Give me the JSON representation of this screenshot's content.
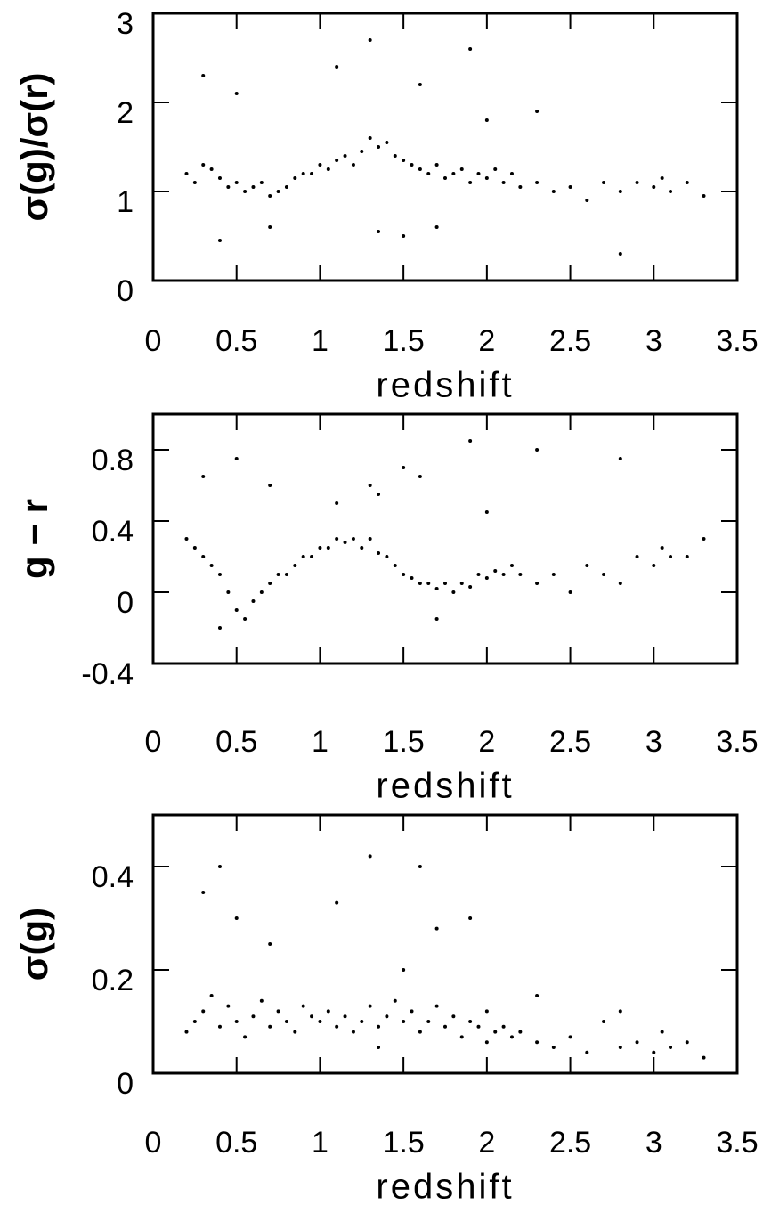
{
  "chart_data": [
    {
      "type": "scatter",
      "xlabel": "redshift",
      "ylabel": "σ(g)/σ(r)",
      "color": "#000000",
      "xlim": [
        0,
        3.5
      ],
      "xticks": [
        0,
        0.5,
        1,
        1.5,
        2,
        2.5,
        3,
        3.5
      ],
      "ylim": [
        0,
        3
      ],
      "yticks": [
        0,
        1,
        2,
        3
      ],
      "x": [
        0.2,
        0.25,
        0.3,
        0.35,
        0.4,
        0.45,
        0.5,
        0.55,
        0.6,
        0.65,
        0.7,
        0.75,
        0.8,
        0.85,
        0.9,
        0.95,
        1.0,
        1.05,
        1.1,
        1.15,
        1.2,
        1.25,
        1.3,
        1.35,
        1.4,
        1.45,
        1.5,
        1.55,
        1.6,
        1.65,
        1.7,
        1.75,
        1.8,
        1.85,
        1.9,
        1.95,
        2.0,
        2.05,
        2.1,
        2.15,
        2.2,
        2.3,
        2.4,
        2.5,
        2.6,
        2.7,
        2.8,
        2.9,
        3.0,
        3.05,
        3.1,
        3.2,
        3.3,
        0.3,
        0.5,
        0.7,
        1.3,
        1.35,
        1.6,
        1.9,
        2.3,
        2.8,
        0.4,
        1.1,
        1.5,
        1.7,
        2.0
      ],
      "y": [
        1.2,
        1.1,
        1.3,
        1.25,
        1.15,
        1.05,
        1.1,
        1.0,
        1.05,
        1.1,
        0.95,
        1.0,
        1.05,
        1.15,
        1.2,
        1.2,
        1.3,
        1.25,
        1.35,
        1.4,
        1.3,
        1.45,
        1.6,
        1.5,
        1.55,
        1.4,
        1.35,
        1.3,
        1.25,
        1.2,
        1.3,
        1.15,
        1.2,
        1.25,
        1.1,
        1.2,
        1.15,
        1.25,
        1.1,
        1.2,
        1.05,
        1.1,
        1.0,
        1.05,
        0.9,
        1.1,
        1.0,
        1.1,
        1.05,
        1.15,
        1.0,
        1.1,
        0.95,
        2.3,
        2.1,
        0.6,
        2.7,
        0.55,
        2.2,
        2.6,
        1.9,
        0.3,
        0.45,
        2.4,
        0.5,
        0.6,
        1.8
      ]
    },
    {
      "type": "scatter",
      "xlabel": "redshift",
      "ylabel": "g − r",
      "color": "#000000",
      "xlim": [
        0,
        3.5
      ],
      "xticks": [
        0,
        0.5,
        1,
        1.5,
        2,
        2.5,
        3,
        3.5
      ],
      "ylim": [
        -0.4,
        1.0
      ],
      "yticks": [
        -0.4,
        0,
        0.4,
        0.8
      ],
      "x": [
        0.2,
        0.25,
        0.3,
        0.35,
        0.4,
        0.45,
        0.5,
        0.55,
        0.6,
        0.65,
        0.7,
        0.75,
        0.8,
        0.85,
        0.9,
        0.95,
        1.0,
        1.05,
        1.1,
        1.15,
        1.2,
        1.25,
        1.3,
        1.35,
        1.4,
        1.45,
        1.5,
        1.55,
        1.6,
        1.65,
        1.7,
        1.75,
        1.8,
        1.85,
        1.9,
        1.95,
        2.0,
        2.05,
        2.1,
        2.15,
        2.2,
        2.3,
        2.4,
        2.5,
        2.6,
        2.7,
        2.8,
        2.9,
        3.0,
        3.05,
        3.1,
        3.2,
        3.3,
        0.3,
        0.5,
        0.7,
        1.3,
        1.35,
        1.6,
        1.9,
        2.3,
        2.8,
        0.4,
        1.1,
        1.5,
        1.7,
        2.0
      ],
      "y": [
        0.3,
        0.25,
        0.2,
        0.15,
        0.1,
        0.0,
        -0.1,
        -0.15,
        -0.05,
        0.0,
        0.05,
        0.1,
        0.1,
        0.15,
        0.2,
        0.2,
        0.25,
        0.25,
        0.3,
        0.28,
        0.3,
        0.25,
        0.3,
        0.22,
        0.2,
        0.15,
        0.1,
        0.08,
        0.05,
        0.05,
        0.02,
        0.05,
        0.0,
        0.05,
        0.03,
        0.1,
        0.08,
        0.12,
        0.1,
        0.15,
        0.1,
        0.05,
        0.1,
        0.0,
        0.15,
        0.1,
        0.05,
        0.2,
        0.15,
        0.25,
        0.2,
        0.2,
        0.3,
        0.65,
        0.75,
        0.6,
        0.6,
        0.55,
        0.65,
        0.85,
        0.8,
        0.75,
        -0.2,
        0.5,
        0.7,
        -0.15,
        0.45
      ]
    },
    {
      "type": "scatter",
      "xlabel": "redshift",
      "ylabel": "σ(g)",
      "color": "#000000",
      "xlim": [
        0,
        3.5
      ],
      "xticks": [
        0,
        0.5,
        1,
        1.5,
        2,
        2.5,
        3,
        3.5
      ],
      "ylim": [
        0,
        0.5
      ],
      "yticks": [
        0,
        0.2,
        0.4
      ],
      "x": [
        0.2,
        0.25,
        0.3,
        0.35,
        0.4,
        0.45,
        0.5,
        0.55,
        0.6,
        0.65,
        0.7,
        0.75,
        0.8,
        0.85,
        0.9,
        0.95,
        1.0,
        1.05,
        1.1,
        1.15,
        1.2,
        1.25,
        1.3,
        1.35,
        1.4,
        1.45,
        1.5,
        1.55,
        1.6,
        1.65,
        1.7,
        1.75,
        1.8,
        1.85,
        1.9,
        1.95,
        2.0,
        2.05,
        2.1,
        2.15,
        2.2,
        2.3,
        2.4,
        2.5,
        2.6,
        2.7,
        2.8,
        2.9,
        3.0,
        3.05,
        3.1,
        3.2,
        3.3,
        0.3,
        0.5,
        0.7,
        1.3,
        1.35,
        1.6,
        1.9,
        2.3,
        2.8,
        0.4,
        1.1,
        1.5,
        1.7,
        2.0
      ],
      "y": [
        0.08,
        0.1,
        0.12,
        0.15,
        0.09,
        0.13,
        0.1,
        0.07,
        0.11,
        0.14,
        0.09,
        0.12,
        0.1,
        0.08,
        0.13,
        0.11,
        0.1,
        0.12,
        0.09,
        0.11,
        0.08,
        0.1,
        0.13,
        0.09,
        0.11,
        0.14,
        0.1,
        0.12,
        0.08,
        0.1,
        0.13,
        0.09,
        0.11,
        0.07,
        0.1,
        0.09,
        0.12,
        0.08,
        0.09,
        0.07,
        0.08,
        0.06,
        0.05,
        0.07,
        0.04,
        0.1,
        0.05,
        0.06,
        0.04,
        0.08,
        0.05,
        0.06,
        0.03,
        0.35,
        0.3,
        0.25,
        0.42,
        0.05,
        0.4,
        0.3,
        0.15,
        0.12,
        0.4,
        0.33,
        0.2,
        0.28,
        0.06
      ]
    }
  ]
}
